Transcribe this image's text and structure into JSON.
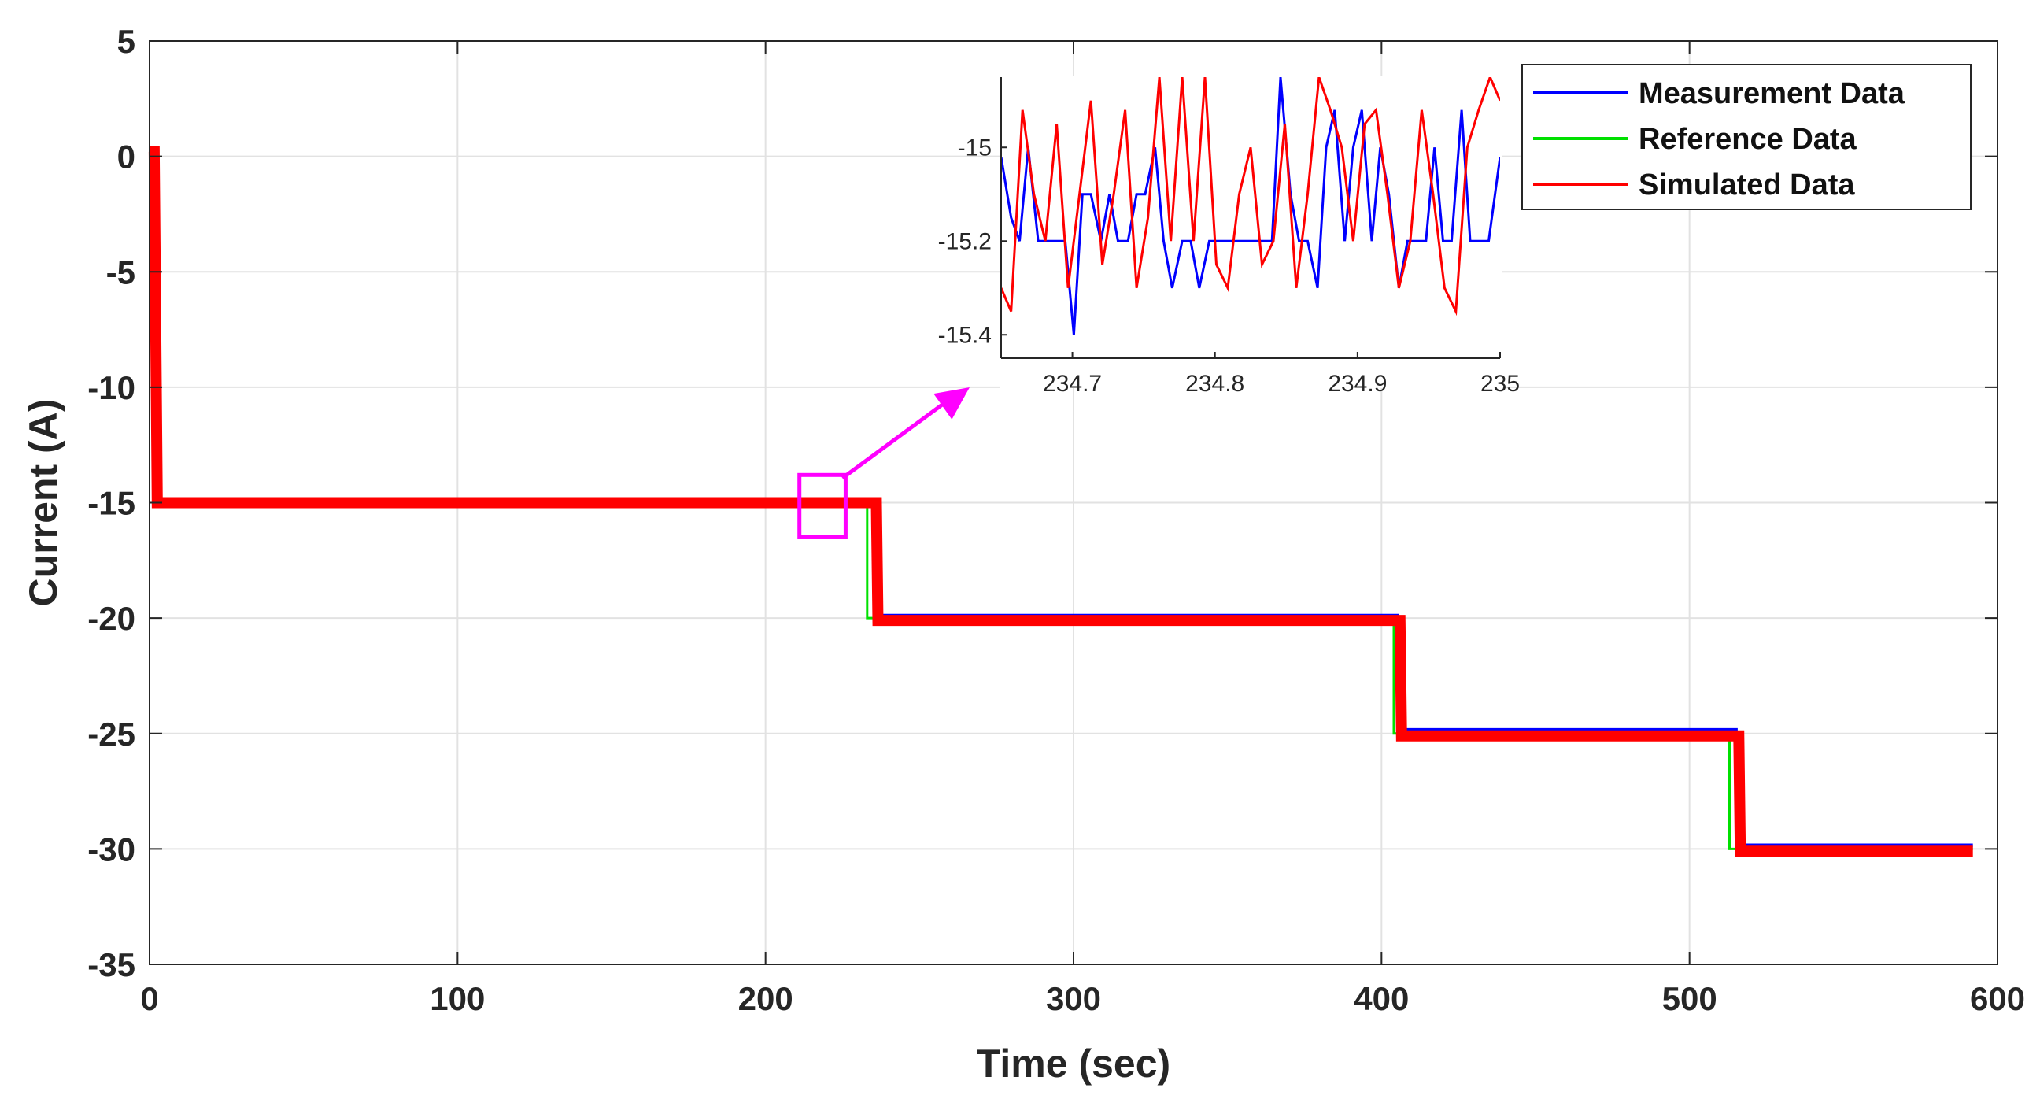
{
  "chart_data": [
    {
      "type": "line",
      "xlabel": "Time (sec)",
      "ylabel": "Current (A)",
      "xlim": [
        0,
        600
      ],
      "ylim": [
        -35,
        5
      ],
      "xticks": [
        "0",
        "100",
        "200",
        "300",
        "400",
        "500",
        "600"
      ],
      "yticks": [
        "5",
        "0",
        "-5",
        "-10",
        "-15",
        "-20",
        "-25",
        "-30",
        "-35"
      ],
      "grid": true,
      "legend_position": "top-right",
      "series": [
        {
          "name": "Measurement Data",
          "color": "#0000ff",
          "x": [
            0,
            1.5,
            2.5,
            3,
            235,
            235.5,
            236,
            405,
            405.5,
            406,
            515,
            515.5,
            516,
            592
          ],
          "y": [
            0,
            0,
            -15.1,
            -15.1,
            -15.1,
            -20,
            -19.9,
            -19.9,
            -25,
            -24.85,
            -24.85,
            -30,
            -29.85,
            -29.85
          ]
        },
        {
          "name": "Reference Data",
          "color": "#00e000",
          "x": [
            0,
            2,
            2,
            233,
            233,
            404,
            404,
            513,
            513,
            592
          ],
          "y": [
            0,
            0,
            -15,
            -15,
            -20,
            -20,
            -25,
            -25,
            -30,
            -30
          ]
        },
        {
          "name": "Simulated Data",
          "color": "#ff0000",
          "x": [
            0,
            1.5,
            2.5,
            236,
            236.5,
            406,
            406.5,
            516,
            516.5,
            592
          ],
          "y": [
            0.2,
            0.2,
            -15,
            -15,
            -20.1,
            -20.1,
            -25.1,
            -25.1,
            -30.1,
            -30.1
          ]
        }
      ],
      "annotations": [
        {
          "type": "zoom-box",
          "x": [
            211,
            226
          ],
          "y": [
            -16.5,
            -13.8
          ],
          "color": "#ff00ff"
        }
      ]
    },
    {
      "type": "line",
      "role": "inset-zoom",
      "xlim": [
        234.65,
        235
      ],
      "ylim": [
        -15.45,
        -14.85
      ],
      "xticks": [
        "234.7",
        "234.8",
        "234.9",
        "235"
      ],
      "yticks": [
        "-15",
        "-15.2",
        "-15.4"
      ],
      "series": [
        {
          "name": "Measurement Data",
          "color": "#0000ff",
          "x": [
            234.65,
            234.657,
            234.663,
            234.669,
            234.676,
            234.682,
            234.688,
            234.695,
            234.701,
            234.707,
            234.713,
            234.72,
            234.726,
            234.732,
            234.739,
            234.745,
            234.751,
            234.758,
            234.764,
            234.77,
            234.777,
            234.783,
            234.789,
            234.796,
            234.802,
            234.808,
            234.815,
            234.821,
            234.827,
            234.834,
            234.84,
            234.846,
            234.853,
            234.859,
            234.865,
            234.872,
            234.878,
            234.884,
            234.891,
            234.897,
            234.903,
            234.91,
            234.916,
            234.922,
            234.929,
            234.935,
            234.941,
            234.948,
            234.954,
            234.96,
            234.966,
            234.973,
            234.979,
            234.985,
            234.992,
            235.0
          ],
          "y": [
            -15.02,
            -15.15,
            -15.2,
            -15.0,
            -15.2,
            -15.2,
            -15.2,
            -15.2,
            -15.4,
            -15.1,
            -15.1,
            -15.2,
            -15.1,
            -15.2,
            -15.2,
            -15.1,
            -15.1,
            -15.0,
            -15.2,
            -15.3,
            -15.2,
            -15.2,
            -15.3,
            -15.2,
            -15.2,
            -15.2,
            -15.2,
            -15.2,
            -15.2,
            -15.2,
            -15.2,
            -14.85,
            -15.1,
            -15.2,
            -15.2,
            -15.3,
            -15.0,
            -14.92,
            -15.2,
            -15.0,
            -14.92,
            -15.2,
            -15.0,
            -15.1,
            -15.3,
            -15.2,
            -15.2,
            -15.2,
            -15.0,
            -15.2,
            -15.2,
            -14.92,
            -15.2,
            -15.2,
            -15.2,
            -15.02
          ]
        },
        {
          "name": "Simulated Data",
          "color": "#ff0000",
          "x": [
            234.65,
            234.657,
            234.665,
            234.673,
            234.681,
            234.689,
            234.697,
            234.705,
            234.713,
            234.721,
            234.729,
            234.737,
            234.745,
            234.753,
            234.761,
            234.769,
            234.777,
            234.785,
            234.793,
            234.801,
            234.809,
            234.817,
            234.825,
            234.833,
            234.841,
            234.849,
            234.857,
            234.865,
            234.873,
            234.881,
            234.889,
            234.897,
            234.905,
            234.913,
            234.921,
            234.929,
            234.937,
            234.945,
            234.953,
            234.961,
            234.969,
            234.977,
            234.985,
            234.993,
            235.0
          ],
          "y": [
            -15.3,
            -15.35,
            -14.92,
            -15.1,
            -15.2,
            -14.95,
            -15.3,
            -15.1,
            -14.9,
            -15.25,
            -15.1,
            -14.92,
            -15.3,
            -15.15,
            -14.85,
            -15.2,
            -14.85,
            -15.2,
            -14.85,
            -15.25,
            -15.3,
            -15.1,
            -15.0,
            -15.25,
            -15.2,
            -14.95,
            -15.3,
            -15.1,
            -14.85,
            -14.92,
            -15.0,
            -15.2,
            -14.95,
            -14.92,
            -15.1,
            -15.3,
            -15.2,
            -14.92,
            -15.1,
            -15.3,
            -15.35,
            -15.0,
            -14.92,
            -14.85,
            -14.9
          ]
        }
      ]
    }
  ]
}
